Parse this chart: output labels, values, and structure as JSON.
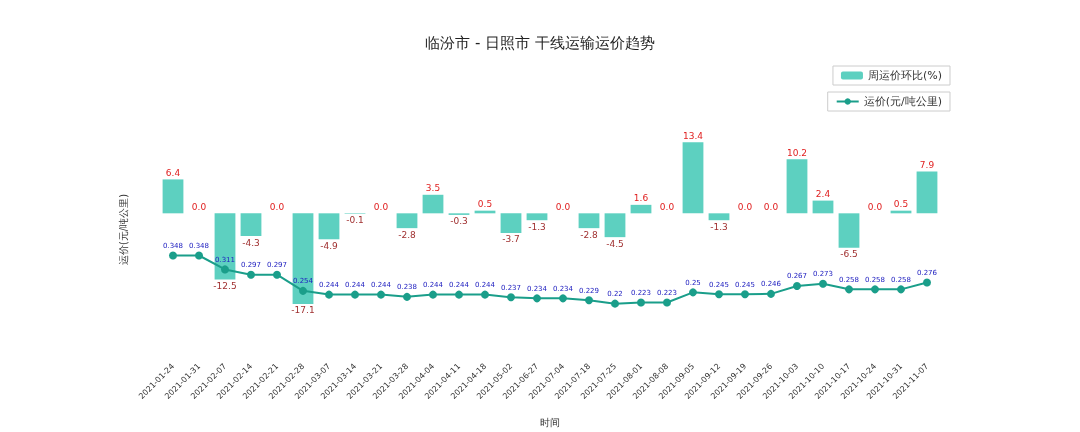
{
  "chart_data": {
    "type": "bar",
    "title": "临汾市 - 日照市 干线运输运价趋势",
    "xlabel": "时间",
    "ylabel": "运价(元/吨公里)",
    "categories": [
      "2021-01-24",
      "2021-01-31",
      "2021-02-07",
      "2021-02-14",
      "2021-02-21",
      "2021-02-28",
      "2021-03-07",
      "2021-03-14",
      "2021-03-21",
      "2021-03-28",
      "2021-04-04",
      "2021-04-11",
      "2021-04-18",
      "2021-05-02",
      "2021-06-27",
      "2021-07-04",
      "2021-07-18",
      "2021-07-25",
      "2021-08-01",
      "2021-08-08",
      "2021-09-05",
      "2021-09-12",
      "2021-09-19",
      "2021-09-26",
      "2021-10-03",
      "2021-10-10",
      "2021-10-17",
      "2021-10-24",
      "2021-10-31",
      "2021-11-07"
    ],
    "series": [
      {
        "name": "周运价环比(%)",
        "color": "#5dd0c0",
        "values": [
          6.4,
          0.0,
          -12.5,
          -4.3,
          0.0,
          -17.1,
          -4.9,
          -0.1,
          0.0,
          -2.8,
          3.5,
          -0.3,
          0.5,
          -3.7,
          -1.3,
          0.0,
          -2.8,
          -4.5,
          1.6,
          0.0,
          13.4,
          -1.3,
          0.0,
          0.0,
          10.2,
          2.4,
          -6.5,
          0.0,
          0.5,
          7.9
        ],
        "value_labels": [
          "6.4",
          "0.0",
          "-12.5",
          "-4.3",
          "0.0",
          "-17.1",
          "-4.9",
          "-0.1",
          "0.0",
          "-2.8",
          "3.5",
          "-0.3",
          "0.5",
          "-3.7",
          "-1.3",
          "0.0",
          "-2.8",
          "-4.5",
          "1.6",
          "0.0",
          "13.4",
          "-1.3",
          "0.0",
          "0.0",
          "10.2",
          "2.4",
          "-6.5",
          "0.0",
          "0.5",
          "7.9"
        ]
      },
      {
        "name": "运价(元/吨公里)",
        "type": "line",
        "axis": "y2",
        "color": "#1a9e8a",
        "values": [
          0.348,
          0.348,
          0.311,
          0.297,
          0.297,
          0.254,
          0.244,
          0.244,
          0.244,
          0.238,
          0.244,
          0.244,
          0.244,
          0.237,
          0.234,
          0.234,
          0.229,
          0.22,
          0.223,
          0.223,
          0.25,
          0.245,
          0.245,
          0.246,
          0.267,
          0.273,
          0.258,
          0.258,
          0.258,
          0.276
        ],
        "value_labels": [
          "0.348",
          "0.348",
          "0.311",
          "0.297",
          "0.297",
          "0.254",
          "0.244",
          "0.244",
          "0.244",
          "0.238",
          "0.244",
          "0.244",
          "0.244",
          "0.237",
          "0.234",
          "0.234",
          "0.229",
          "0.22",
          "0.223",
          "0.223",
          "0.25",
          "0.245",
          "0.245",
          "0.246",
          "0.267",
          "0.273",
          "0.258",
          "0.258",
          "0.258",
          "0.276"
        ]
      }
    ],
    "tick_labels": "x",
    "marker": "circle",
    "legend": "top right",
    "grid": false
  }
}
